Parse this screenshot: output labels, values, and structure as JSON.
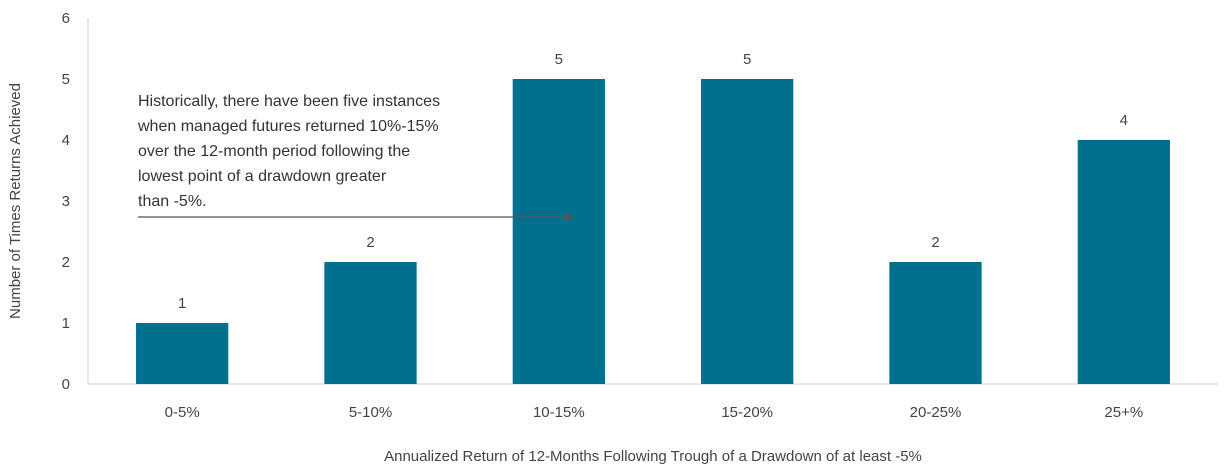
{
  "chart_data": {
    "type": "bar",
    "categories": [
      "0-5%",
      "5-10%",
      "10-15%",
      "15-20%",
      "20-25%",
      "25+%"
    ],
    "values": [
      1,
      2,
      5,
      5,
      2,
      4
    ],
    "data_labels": [
      "1",
      "2",
      "5",
      "5",
      "2",
      "4"
    ],
    "xlabel": "Annualized Return of 12-Months Following Trough of a Drawdown of at least -5%",
    "ylabel": "Number of Times Returns Achieved",
    "ylim": [
      0,
      6
    ],
    "yticks": [
      "0",
      "1",
      "2",
      "3",
      "4",
      "5",
      "6"
    ],
    "grid": false,
    "bar_color": "#00708F",
    "annotation": {
      "lines": [
        "Historically, there have been five instances",
        "when managed futures returned 10%-15%",
        "over the 12-month period following the",
        "lowest point of a drawdown greater",
        "than -5%."
      ],
      "points_to": "10-15%"
    }
  }
}
